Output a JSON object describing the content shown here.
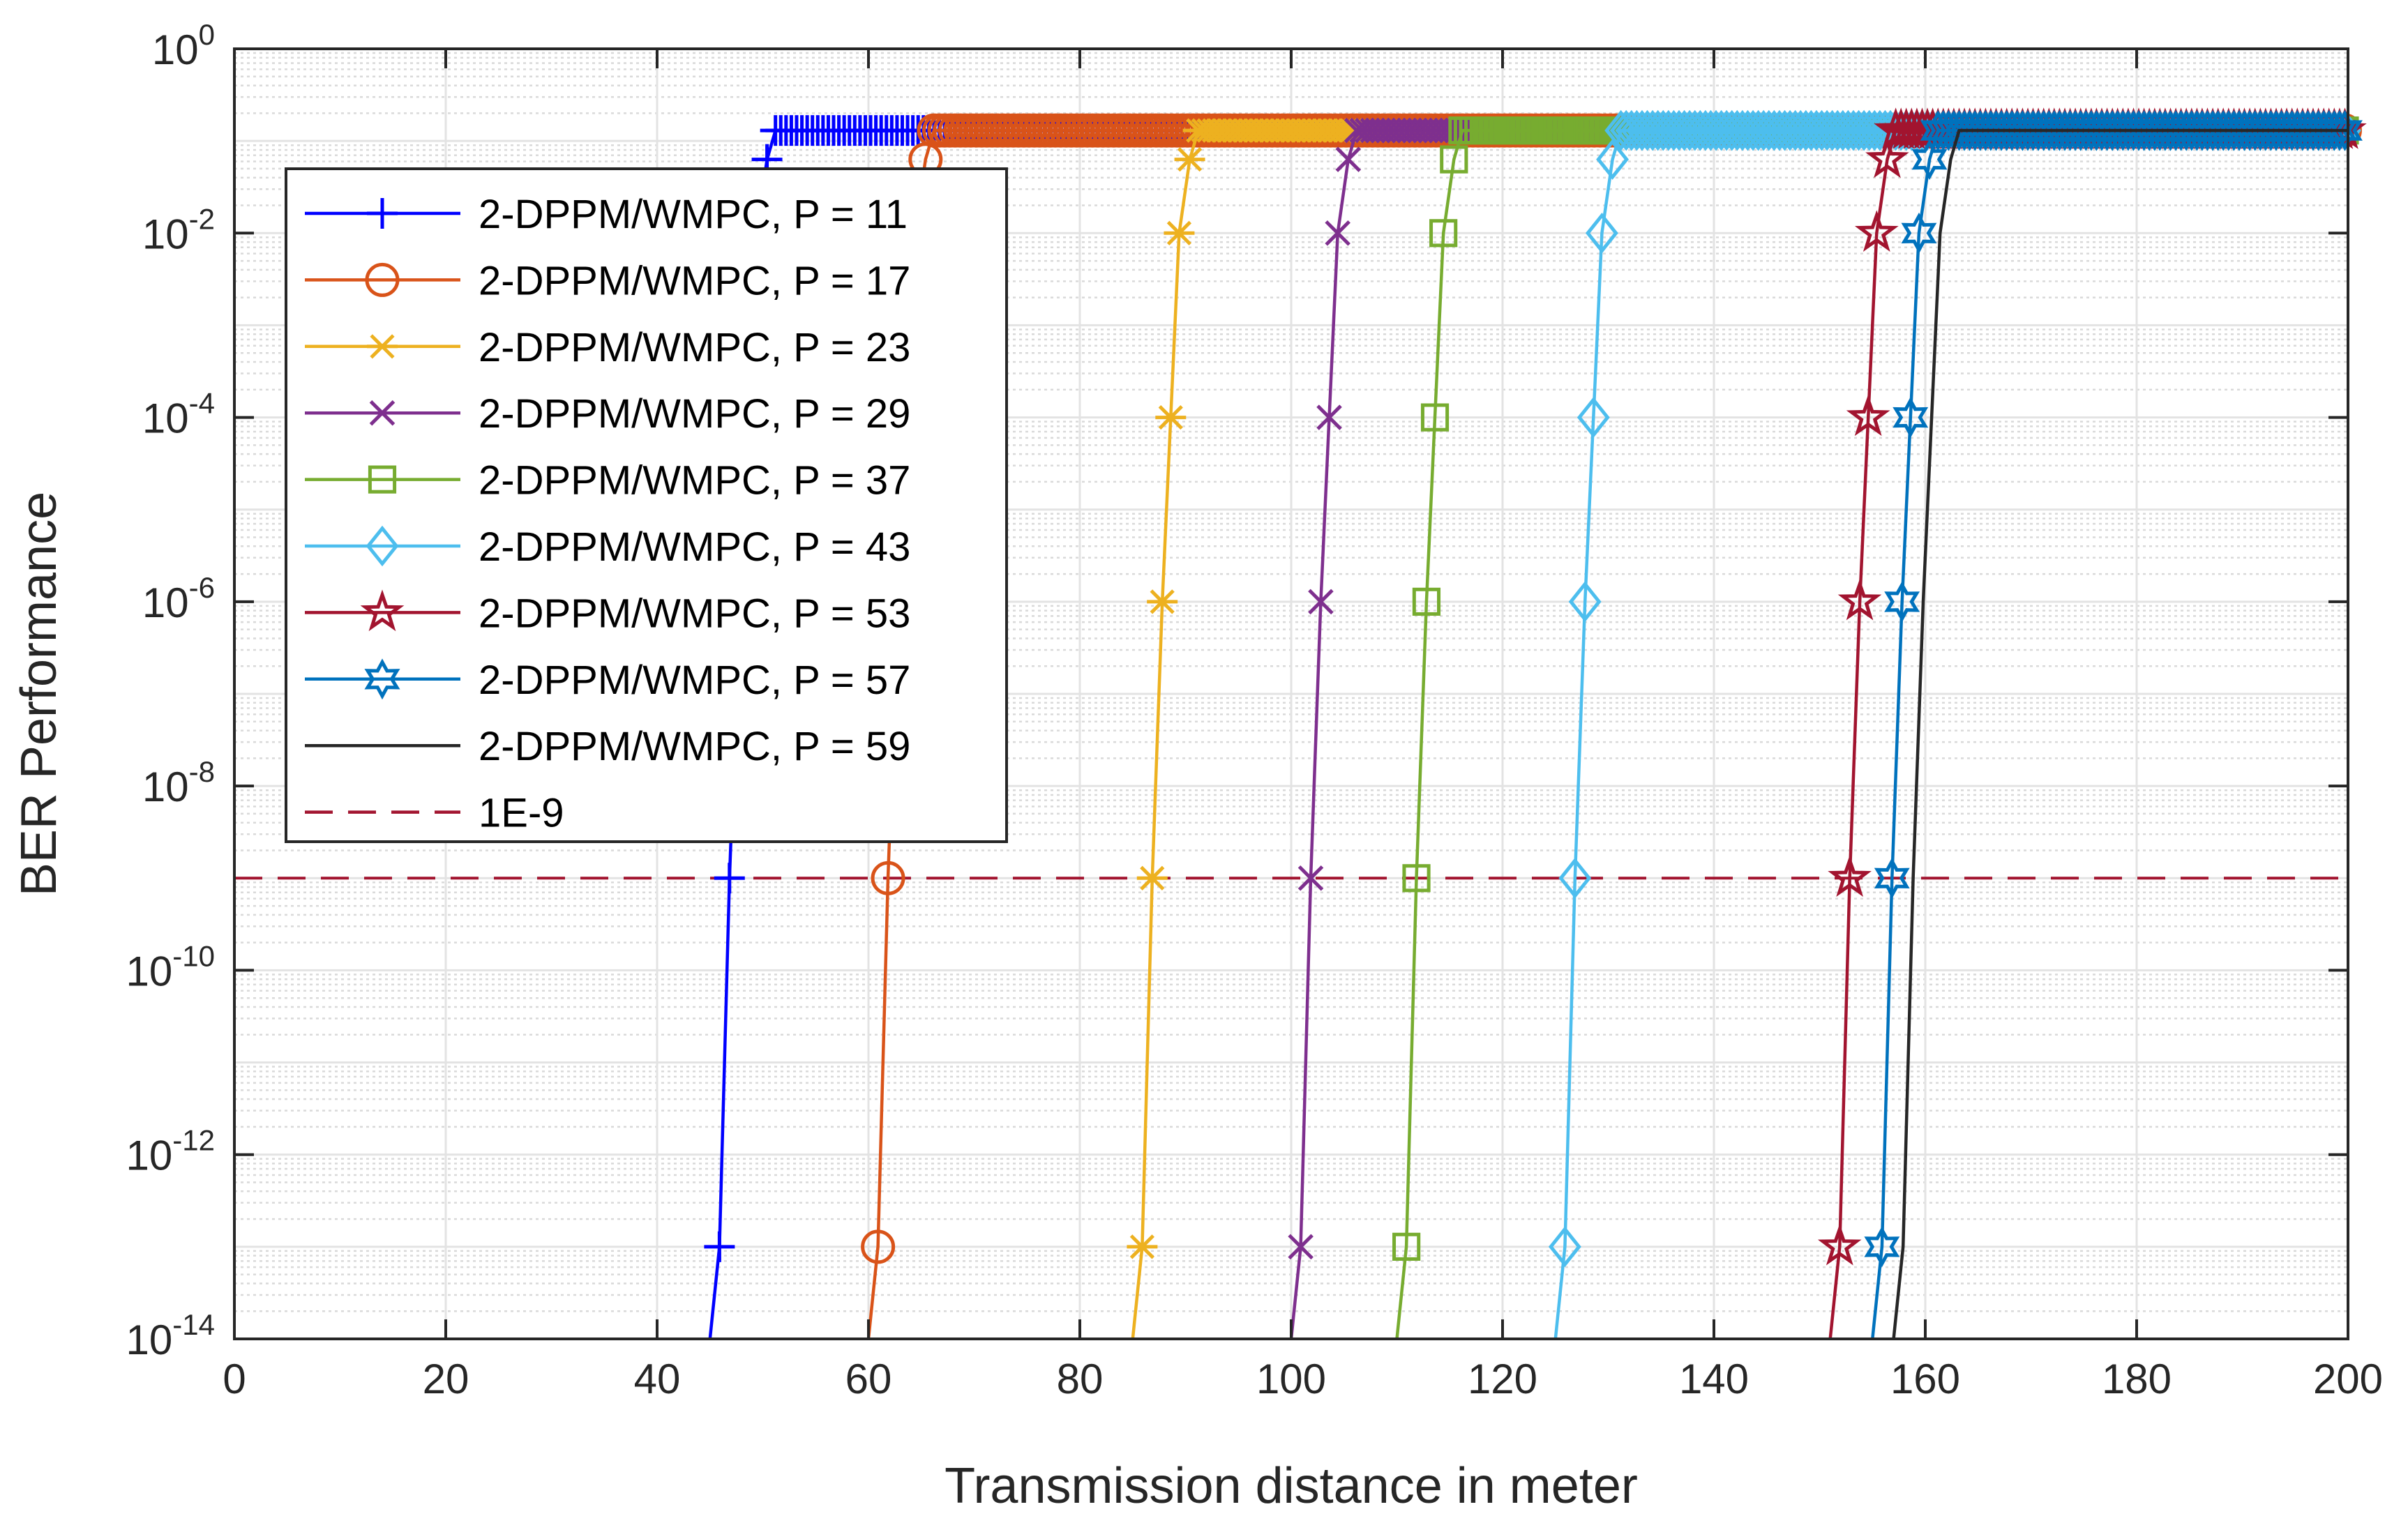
{
  "chart_data": {
    "type": "line",
    "title": "",
    "xlabel": "Transmission distance in meter",
    "ylabel": "BER Performance",
    "xlim": [
      0,
      200
    ],
    "ylim_exponent": [
      -14,
      0
    ],
    "yscale": "log",
    "grid": true,
    "minor_grid": true,
    "legend_location": "top-left",
    "x_ticks": [
      "0",
      "20",
      "40",
      "60",
      "80",
      "100",
      "120",
      "140",
      "160",
      "180",
      "200"
    ],
    "y_ticks": [
      {
        "base": "10",
        "exp": "0",
        "value_exp": 0
      },
      {
        "base": "10",
        "exp": "-2",
        "value_exp": -2
      },
      {
        "base": "10",
        "exp": "-4",
        "value_exp": -4
      },
      {
        "base": "10",
        "exp": "-6",
        "value_exp": -6
      },
      {
        "base": "10",
        "exp": "-8",
        "value_exp": -8
      },
      {
        "base": "10",
        "exp": "-10",
        "value_exp": -10
      },
      {
        "base": "10",
        "exp": "-12",
        "value_exp": -12
      },
      {
        "base": "10",
        "exp": "-14",
        "value_exp": -14
      }
    ],
    "series": [
      {
        "name": "2-DPPM/WMPC, P = 11",
        "color": "#0000ff",
        "marker": "plus",
        "cutoff": 45,
        "width": 7
      },
      {
        "name": "2-DPPM/WMPC, P = 17",
        "color": "#d95319",
        "marker": "circle",
        "cutoff": 60,
        "width": 7
      },
      {
        "name": "2-DPPM/WMPC, P = 23",
        "color": "#edb120",
        "marker": "asterisk",
        "cutoff": 85,
        "width": 7
      },
      {
        "name": "2-DPPM/WMPC, P = 29",
        "color": "#7e2f8e",
        "marker": "x",
        "cutoff": 100,
        "width": 7
      },
      {
        "name": "2-DPPM/WMPC, P = 37",
        "color": "#77ac30",
        "marker": "square",
        "cutoff": 110,
        "width": 7
      },
      {
        "name": "2-DPPM/WMPC, P = 43",
        "color": "#4dbeee",
        "marker": "diamond",
        "cutoff": 125,
        "width": 7
      },
      {
        "name": "2-DPPM/WMPC, P = 53",
        "color": "#a2142f",
        "marker": "pentagram",
        "cutoff": 151,
        "width": 7
      },
      {
        "name": "2-DPPM/WMPC, P = 57",
        "color": "#0072bd",
        "marker": "hexagram",
        "cutoff": 155,
        "width": 7
      },
      {
        "name": "2-DPPM/WMPC, P = 59",
        "color": "#262626",
        "marker": "none",
        "cutoff": 157,
        "width": 7
      }
    ],
    "curve_offsets_m": [
      0,
      0.9,
      1.85,
      2.8,
      3.6,
      4.4,
      5.4
    ],
    "curve_exponents": [
      -14,
      -13,
      -9,
      -6,
      -4,
      -2,
      -1.2
    ],
    "reference_line": {
      "name": "1E-9",
      "value": 1e-09,
      "value_exp": -9,
      "color": "#a2142f",
      "style": "dashed"
    },
    "plateau_ber": 0.13
  }
}
